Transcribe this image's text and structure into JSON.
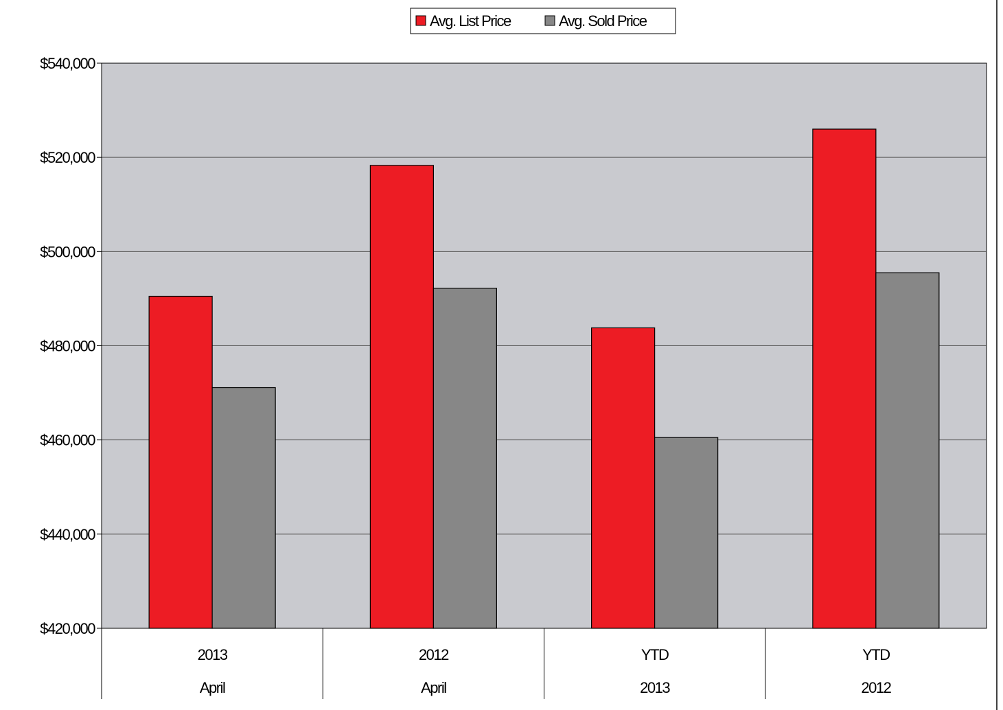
{
  "chart_data": {
    "type": "bar",
    "categories": [
      [
        "2013",
        "April"
      ],
      [
        "2012",
        "April"
      ],
      [
        "YTD",
        "2013"
      ],
      [
        "YTD",
        "2012"
      ]
    ],
    "series": [
      {
        "name": "Avg. List Price",
        "color": "#ed1c24",
        "values": [
          490500,
          518300,
          483800,
          526000
        ]
      },
      {
        "name": "Avg. Sold Price",
        "color": "#878787",
        "values": [
          471100,
          492200,
          460500,
          495500
        ]
      }
    ],
    "ylim": [
      420000,
      540000
    ],
    "yticks": [
      420000,
      440000,
      460000,
      480000,
      500000,
      520000,
      540000
    ],
    "ytick_labels": [
      "$420,000",
      "$440,000",
      "$460,000",
      "$480,000",
      "$500,000",
      "$520,000",
      "$540,000"
    ],
    "plot_background": "#c9cacf",
    "grid": true,
    "legend_position": "top-center",
    "title": "",
    "xlabel": "",
    "ylabel": ""
  }
}
